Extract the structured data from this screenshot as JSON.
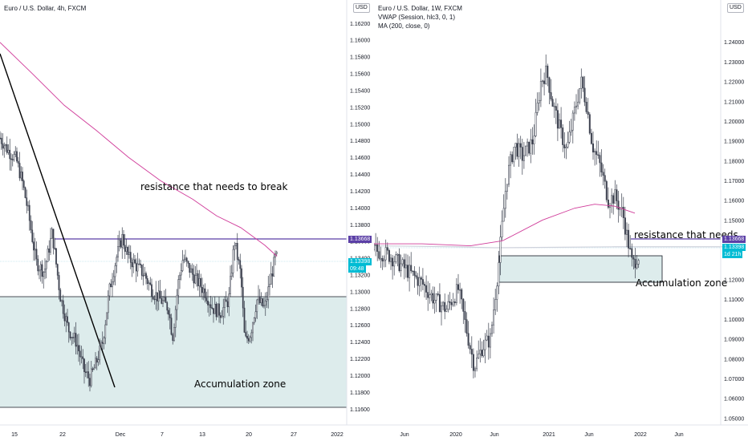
{
  "colors": {
    "zone_fill": "#ddecec",
    "resistance_line": "#5b3fa6",
    "ma_line": "#d03c9a",
    "vwap_line": "#cfd2dc",
    "candle": "#3a3f4d",
    "price_tag_bg": "#00bcd4",
    "resistance_tag_bg": "#5b3fa6",
    "price_line": "#9ad2e4"
  },
  "left_chart": {
    "symbol_title": "Euro / U.S. Dollar, 4h, FXCM",
    "currency_badge": "USD",
    "resistance_label": "resistance that needs to break",
    "zone_label": "Accumulation zone",
    "resistance_price_tag": "1.13668",
    "last_price_tag": "1.13398",
    "countdown_tag": "09:48",
    "price_axis_labels": [
      "1.16200",
      "1.16000",
      "1.15800",
      "1.15600",
      "1.15400",
      "1.15200",
      "1.15000",
      "1.14800",
      "1.14600",
      "1.14400",
      "1.14200",
      "1.14000",
      "1.13800",
      "1.13600",
      "1.13400",
      "1.13200",
      "1.13000",
      "1.12800",
      "1.12600",
      "1.12400",
      "1.12200",
      "1.12000",
      "1.11800",
      "1.11600"
    ],
    "time_axis_labels": [
      "15",
      "22",
      "Dec",
      "7",
      "13",
      "20",
      "27",
      "2022"
    ]
  },
  "right_chart": {
    "symbol_title": "Euro / U.S. Dollar, 1W, FXCM",
    "indicator_1": "VWAP (Session, hlc3, 0, 1)",
    "indicator_2": "MA (200, close, 0)",
    "currency_badge": "USD",
    "resistance_label": "resistance that needs",
    "zone_label": "Accumulation zone",
    "resistance_price_tag": "1.13668",
    "last_price_tag": "1.13398",
    "countdown_tag": "1d 21h",
    "price_axis_labels": [
      "1.24000",
      "1.23000",
      "1.22000",
      "1.21000",
      "1.20000",
      "1.19000",
      "1.18000",
      "1.17000",
      "1.16000",
      "1.15000",
      "1.14000",
      "1.12000",
      "1.11000",
      "1.10000",
      "1.09000",
      "1.08000",
      "1.07000",
      "1.06000",
      "1.05000"
    ],
    "time_axis_labels": [
      "Jun",
      "2020",
      "Jun",
      "2021",
      "Jun",
      "2022",
      "Jun"
    ]
  },
  "chart_data": [
    {
      "type": "line",
      "title": "Euro / U.S. Dollar, 4h, FXCM",
      "y_range": [
        1.1155,
        1.1638
      ],
      "series": [
        {
          "name": "MA (200, close, 0)",
          "points": [
            [
              0,
              1.1597
            ],
            [
              40,
              1.156
            ],
            [
              80,
              1.1522
            ],
            [
              120,
              1.1492
            ],
            [
              160,
              1.146
            ],
            [
              200,
              1.1432
            ],
            [
              240,
              1.141
            ],
            [
              270,
              1.139
            ],
            [
              300,
              1.1376
            ],
            [
              330,
              1.1355
            ],
            [
              345,
              1.1342
            ]
          ]
        }
      ],
      "price_path": [
        [
          0,
          1.1483
        ],
        [
          10,
          1.1468
        ],
        [
          20,
          1.1458
        ],
        [
          28,
          1.143
        ],
        [
          35,
          1.1395
        ],
        [
          45,
          1.1335
        ],
        [
          55,
          1.1323
        ],
        [
          65,
          1.137
        ],
        [
          75,
          1.1295
        ],
        [
          85,
          1.1255
        ],
        [
          95,
          1.124
        ],
        [
          105,
          1.1205
        ],
        [
          112,
          1.1195
        ],
        [
          120,
          1.1215
        ],
        [
          128,
          1.124
        ],
        [
          136,
          1.13
        ],
        [
          145,
          1.134
        ],
        [
          152,
          1.1365
        ],
        [
          160,
          1.134
        ],
        [
          170,
          1.133
        ],
        [
          180,
          1.132
        ],
        [
          190,
          1.13
        ],
        [
          200,
          1.129
        ],
        [
          210,
          1.128
        ],
        [
          215,
          1.1245
        ],
        [
          222,
          1.131
        ],
        [
          228,
          1.134
        ],
        [
          240,
          1.132
        ],
        [
          255,
          1.13
        ],
        [
          265,
          1.128
        ],
        [
          275,
          1.1275
        ],
        [
          285,
          1.129
        ],
        [
          292,
          1.136
        ],
        [
          300,
          1.132
        ],
        [
          305,
          1.124
        ],
        [
          312,
          1.125
        ],
        [
          320,
          1.129
        ],
        [
          330,
          1.128
        ],
        [
          336,
          1.131
        ],
        [
          343,
          1.134
        ]
      ],
      "annotations": {
        "resistance": 1.13668,
        "last_price": 1.13398,
        "zone_top": 1.13,
        "zone_bottom": 1.1168
      },
      "trendline": [
        [
          0,
          1.1605
        ],
        [
          143,
          1.119
        ]
      ]
    },
    {
      "type": "line",
      "title": "Euro / U.S. Dollar, 1W, FXCM",
      "y_range": [
        1.0445,
        1.251
      ],
      "series": [
        {
          "name": "VWAP (Session, hlc3, 0, 1)",
          "points": [
            [
              0,
              1.137
            ],
            [
              100,
              1.1365
            ],
            [
              150,
              1.136
            ],
            [
              300,
              1.1365
            ],
            [
              450,
              1.1365
            ]
          ]
        },
        {
          "name": "MA (200, close, 0)",
          "points": [
            [
              0,
              1.138
            ],
            [
              60,
              1.138
            ],
            [
              120,
              1.137
            ],
            [
              160,
              1.1395
            ],
            [
              210,
              1.15
            ],
            [
              250,
              1.156
            ],
            [
              275,
              1.158
            ],
            [
              300,
              1.157
            ],
            [
              325,
              1.1535
            ]
          ]
        }
      ],
      "price_path": [
        [
          0,
          1.135
        ],
        [
          20,
          1.132
        ],
        [
          40,
          1.125
        ],
        [
          60,
          1.118
        ],
        [
          75,
          1.11
        ],
        [
          90,
          1.105
        ],
        [
          105,
          1.115
        ],
        [
          115,
          1.095
        ],
        [
          125,
          1.076
        ],
        [
          135,
          1.086
        ],
        [
          145,
          1.09
        ],
        [
          155,
          1.127
        ],
        [
          165,
          1.17
        ],
        [
          175,
          1.188
        ],
        [
          185,
          1.182
        ],
        [
          198,
          1.19
        ],
        [
          208,
          1.22
        ],
        [
          215,
          1.225
        ],
        [
          222,
          1.21
        ],
        [
          232,
          1.195
        ],
        [
          240,
          1.185
        ],
        [
          250,
          1.205
        ],
        [
          258,
          1.22
        ],
        [
          265,
          1.208
        ],
        [
          272,
          1.188
        ],
        [
          282,
          1.177
        ],
        [
          292,
          1.16
        ],
        [
          300,
          1.162
        ],
        [
          310,
          1.153
        ],
        [
          318,
          1.136
        ],
        [
          322,
          1.127
        ],
        [
          328,
          1.132
        ]
      ],
      "annotations": {
        "resistance": 1.13668,
        "last_price": 1.13398,
        "zone_top": 1.1345,
        "zone_bottom": 1.117
      }
    }
  ]
}
